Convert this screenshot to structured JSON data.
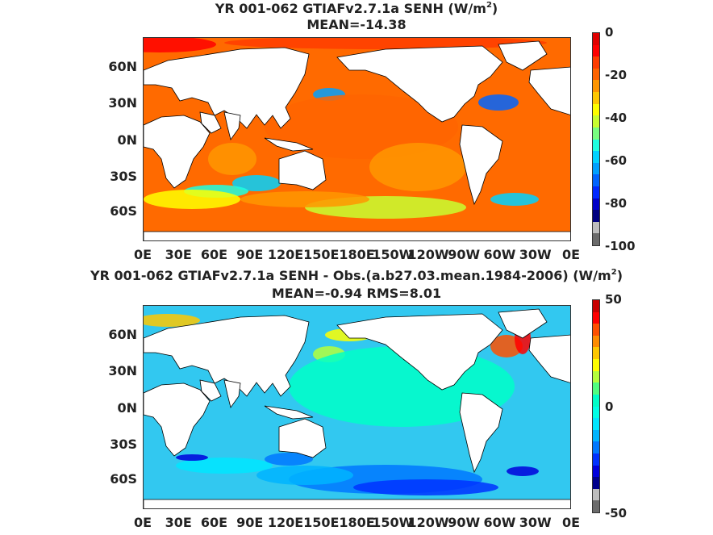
{
  "panels": [
    {
      "title_main": "YR 001-062 GTIAFv2.7.1a  SENH (W/m",
      "title_sup": "2",
      "title_close": ")",
      "subtitle": "MEAN=-14.38",
      "colorbar": {
        "ticks": [
          "0",
          "-20",
          "-40",
          "-60",
          "-80",
          "-100"
        ],
        "range": [
          -100,
          0
        ],
        "colors": [
          "#6b6b6b",
          "#bdbdbd",
          "#000080",
          "#0000c8",
          "#0028ff",
          "#0064ff",
          "#00a0ff",
          "#00d2ff",
          "#1effe0",
          "#78ff80",
          "#c8ff30",
          "#ffff00",
          "#ffc800",
          "#ff9600",
          "#ff6400",
          "#ff3c00",
          "#ff0000",
          "#e00000"
        ]
      },
      "dominant_color": "#ff6a00",
      "land_color": "#ffffff"
    },
    {
      "title_main": "YR 001-062 GTIAFv2.7.1a SENH - Obs.(a.b27.03.mean.1984-2006) (W/m",
      "title_sup": "2",
      "title_close": ")",
      "subtitle": "MEAN=-0.94 RMS=8.01",
      "colorbar": {
        "ticks": [
          "50",
          "0",
          "-50"
        ],
        "range": [
          -50,
          50
        ],
        "colors": [
          "#6b6b6b",
          "#bdbdbd",
          "#00008c",
          "#0000dc",
          "#0032ff",
          "#0078ff",
          "#00b4ff",
          "#00e6ff",
          "#00ffe6",
          "#00ffc8",
          "#50ff80",
          "#b4ff3c",
          "#ffff00",
          "#ffc800",
          "#ff8c00",
          "#ff5000",
          "#ff0000",
          "#c80000"
        ]
      },
      "dominant_color": "#32c8f0",
      "land_color": "#ffffff"
    }
  ],
  "lat_labels": [
    "60N",
    "30N",
    "0N",
    "30S",
    "60S"
  ],
  "lon_labels": [
    "0E",
    "30E",
    "60E",
    "90E",
    "120E",
    "150E",
    "180E",
    "150W",
    "120W",
    "90W",
    "60W",
    "30W",
    "0E"
  ]
}
